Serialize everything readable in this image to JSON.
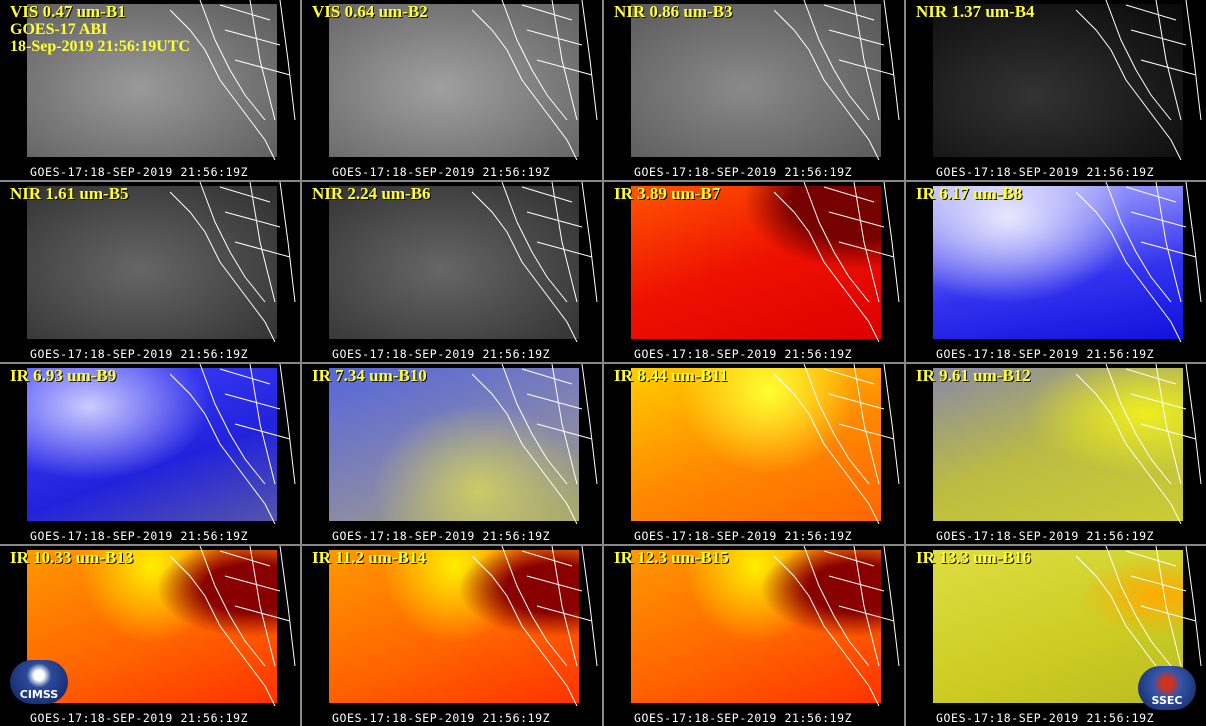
{
  "panels": [
    {
      "label": "VIS 0.47 um-B1",
      "footer": "GOES-17:18-SEP-2019 21:56:19Z"
    },
    {
      "label": "VIS 0.64 um-B2",
      "footer": "GOES-17:18-SEP-2019 21:56:19Z"
    },
    {
      "label": "NIR 0.86 um-B3",
      "footer": "GOES-17:18-SEP-2019 21:56:19Z"
    },
    {
      "label": "NIR 1.37 um-B4",
      "footer": "GOES-17:18-SEP-2019 21:56:19Z"
    },
    {
      "label": "NIR 1.61 um-B5",
      "footer": "GOES-17:18-SEP-2019 21:56:19Z"
    },
    {
      "label": "NIR 2.24 um-B6",
      "footer": "GOES-17:18-SEP-2019 21:56:19Z"
    },
    {
      "label": "IR 3.89 um-B7",
      "footer": "GOES-17:18-SEP-2019 21:56:19Z"
    },
    {
      "label": "IR 6.17 um-B8",
      "footer": "GOES-17:18-SEP-2019 21:56:19Z"
    },
    {
      "label": "IR 6.93 um-B9",
      "footer": "GOES-17:18-SEP-2019 21:56:19Z"
    },
    {
      "label": "IR 7.34 um-B10",
      "footer": "GOES-17:18-SEP-2019 21:56:19Z"
    },
    {
      "label": "IR 8.44 um-B11",
      "footer": "GOES-17:18-SEP-2019 21:56:19Z"
    },
    {
      "label": "IR 9.61 um-B12",
      "footer": "GOES-17:18-SEP-2019 21:56:19Z"
    },
    {
      "label": "IR 10.33 um-B13",
      "footer": "GOES-17:18-SEP-2019 21:56:19Z"
    },
    {
      "label": "IR 11.2 um-B14",
      "footer": "GOES-17:18-SEP-2019 21:56:19Z"
    },
    {
      "label": "IR 12.3 um-B15",
      "footer": "GOES-17:18-SEP-2019 21:56:19Z"
    },
    {
      "label": "IR 13.3 um-B16",
      "footer": "GOES-17:18-SEP-2019 21:56:19Z"
    }
  ],
  "header_lines": [
    "GOES-17 ABI",
    "18-Sep-2019 21:56:19UTC"
  ],
  "logos": {
    "left": "CIMSS",
    "right": "SSEC"
  }
}
